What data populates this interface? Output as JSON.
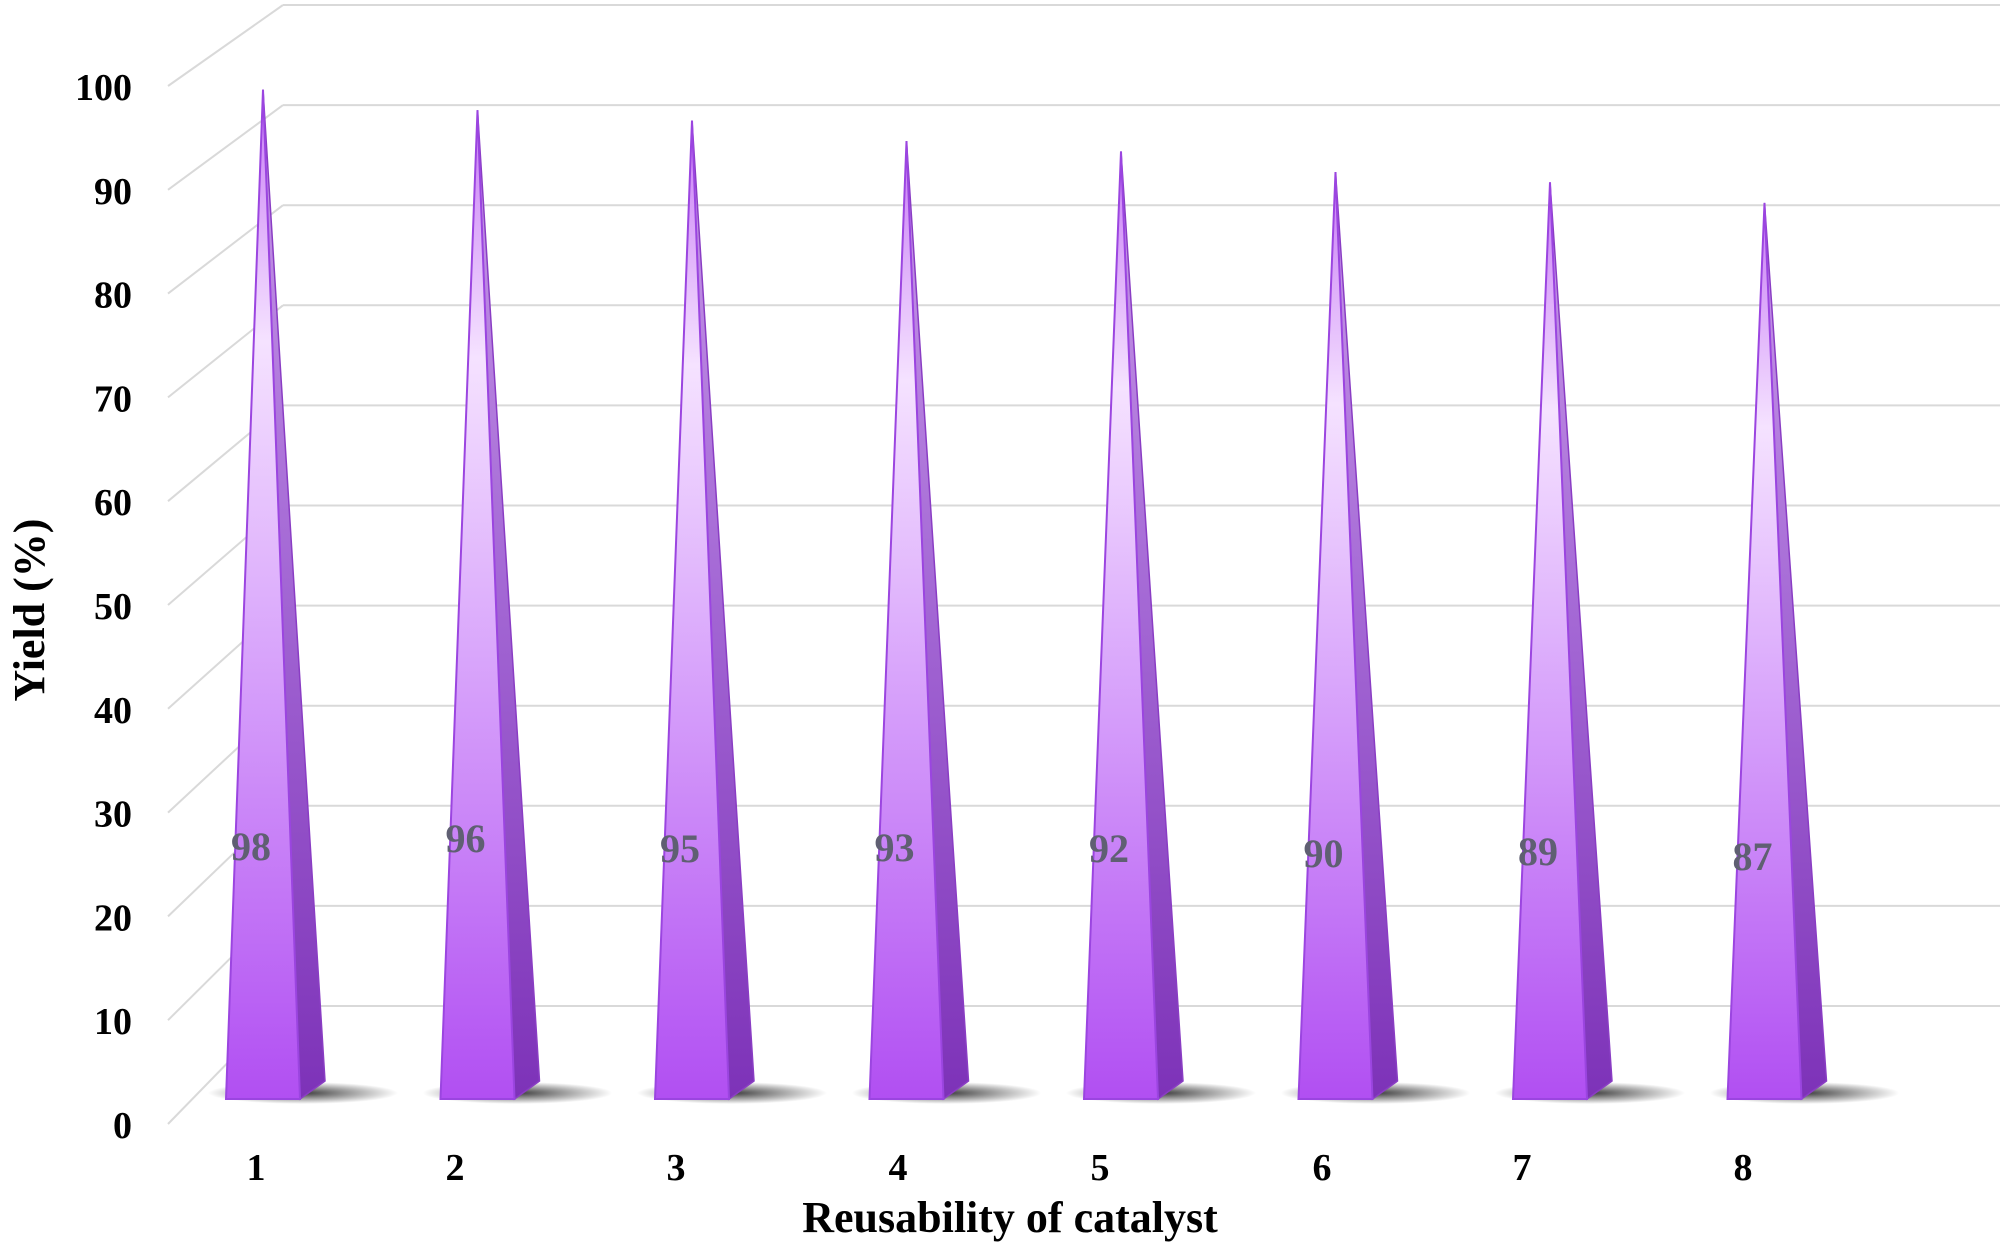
{
  "chart_data": {
    "type": "bar",
    "style": "3d-pyramid",
    "categories": [
      "1",
      "2",
      "3",
      "4",
      "5",
      "6",
      "7",
      "8"
    ],
    "values": [
      98,
      96,
      95,
      93,
      92,
      90,
      89,
      87
    ],
    "data_labels": [
      "98",
      "96",
      "95",
      "93",
      "92",
      "90",
      "89",
      "87"
    ],
    "title": "",
    "xlabel": "Reusability of catalyst",
    "ylabel": "Yield (%)",
    "ylim": [
      0,
      100
    ],
    "yticks": [
      "0",
      "10",
      "20",
      "30",
      "40",
      "50",
      "60",
      "70",
      "80",
      "90",
      "100"
    ],
    "grid": true,
    "legend": "none",
    "colors": {
      "bar_top": "#f3d9ff",
      "bar_bottom": "#b14ff2",
      "bar_side": "#8a3dc4",
      "bar_edge": "#9b45e0",
      "grid": "#d9d9d9",
      "label": "#5f5f72"
    }
  }
}
